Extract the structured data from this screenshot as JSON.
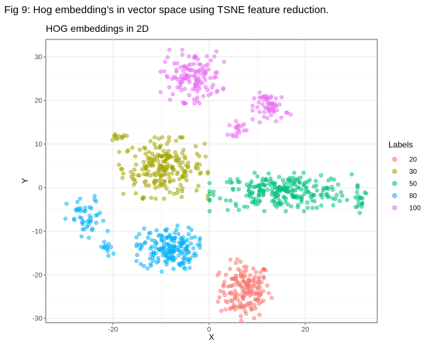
{
  "caption": "Fig 9: Hog embedding’s in vector space using TSNE feature reduction.",
  "chart_data": {
    "type": "scatter",
    "title": "HOG embeddings in 2D",
    "xlabel": "X",
    "ylabel": "Y",
    "xlim": [
      -34,
      35
    ],
    "ylim": [
      -31,
      34
    ],
    "xticks": [
      -20,
      0,
      20
    ],
    "yticks": [
      -30,
      -20,
      -10,
      0,
      10,
      20,
      30
    ],
    "grid": true,
    "legend": {
      "title": "Labels",
      "position": "right"
    },
    "series": [
      {
        "name": "20",
        "color": "#F8766D",
        "clusters": [
          {
            "cx": 7.5,
            "cy": -23.5,
            "sx": 2.6,
            "sy": 3.2,
            "n": 170
          }
        ]
      },
      {
        "name": "30",
        "color": "#A3A500",
        "clusters": [
          {
            "cx": -9.5,
            "cy": 4.5,
            "sx": 4.2,
            "sy": 3.2,
            "n": 220
          },
          {
            "cx": -19.0,
            "cy": 11.5,
            "sx": 1.2,
            "sy": 0.4,
            "n": 12
          }
        ]
      },
      {
        "name": "50",
        "color": "#00BF7D",
        "clusters": [
          {
            "cx": 15.5,
            "cy": -1.0,
            "sx": 7.0,
            "sy": 2.0,
            "n": 250
          },
          {
            "cx": 31.5,
            "cy": -2.5,
            "sx": 0.8,
            "sy": 1.5,
            "n": 15
          }
        ]
      },
      {
        "name": "80",
        "color": "#00B0F6",
        "clusters": [
          {
            "cx": -8.5,
            "cy": -14.0,
            "sx": 3.0,
            "sy": 2.4,
            "n": 180
          },
          {
            "cx": -25.5,
            "cy": -7.5,
            "sx": 2.0,
            "sy": 2.6,
            "n": 45
          },
          {
            "cx": -21.0,
            "cy": -14.0,
            "sx": 1.0,
            "sy": 1.0,
            "n": 12
          }
        ]
      },
      {
        "name": "100",
        "color": "#E76BF3",
        "clusters": [
          {
            "cx": -3.5,
            "cy": 25.5,
            "sx": 3.0,
            "sy": 2.8,
            "n": 130
          },
          {
            "cx": 13.0,
            "cy": 18.5,
            "sx": 1.8,
            "sy": 1.6,
            "n": 55
          },
          {
            "cx": 6.0,
            "cy": 13.5,
            "sx": 1.0,
            "sy": 0.8,
            "n": 18
          }
        ]
      }
    ]
  }
}
